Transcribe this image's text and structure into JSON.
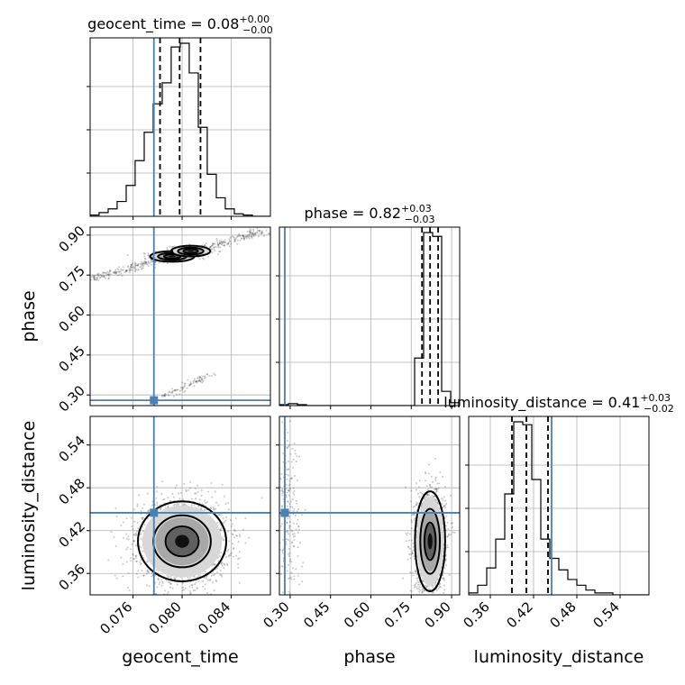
{
  "colors": {
    "truth": "#4682b4",
    "grid": "#b0b0b0",
    "hist": "#000000"
  },
  "chart_data": {
    "type": "corner",
    "parameters": [
      "geocent_time",
      "phase",
      "luminosity_distance"
    ],
    "truths": {
      "geocent_time": 0.0777,
      "phase": 0.28,
      "luminosity_distance": 0.445
    },
    "titles": [
      {
        "param": "geocent_time",
        "text": "geocent_time = 0.08",
        "sup": "+0.00",
        "sub": "−0.00"
      },
      {
        "param": "phase",
        "text": "phase = 0.82",
        "sup": "+0.03",
        "sub": "−0.03"
      },
      {
        "param": "luminosity_distance",
        "text": "luminosity_distance = 0.41",
        "sup": "+0.03",
        "sub": "−0.02"
      }
    ],
    "axes": {
      "geocent_time": {
        "label": "geocent_time",
        "range": [
          0.0725,
          0.0872
        ],
        "ticks": [
          0.076,
          0.08,
          0.084
        ],
        "tick_labels": [
          "0.076",
          "0.080",
          "0.084"
        ]
      },
      "phase": {
        "label": "phase",
        "range": [
          0.26,
          0.93
        ],
        "ticks": [
          0.3,
          0.45,
          0.6,
          0.75,
          0.9
        ],
        "tick_labels": [
          "0.30",
          "0.45",
          "0.60",
          "0.75",
          "0.90"
        ]
      },
      "luminosity_distance": {
        "label": "luminosity_distance",
        "range": [
          0.33,
          0.58
        ],
        "ticks": [
          0.36,
          0.42,
          0.48,
          0.54
        ],
        "tick_labels": [
          "0.36",
          "0.42",
          "0.48",
          "0.54"
        ]
      }
    },
    "histograms": [
      {
        "param": "geocent_time",
        "bin_edges": [
          0.0725,
          0.07323,
          0.07397,
          0.0747,
          0.07544,
          0.07617,
          0.07691,
          0.07764,
          0.07838,
          0.07911,
          0.07985,
          0.08058,
          0.08132,
          0.08205,
          0.08279,
          0.08352,
          0.08426,
          0.08499,
          0.08573,
          0.08646,
          0.0872
        ],
        "counts": [
          1,
          3,
          6,
          12,
          25,
          45,
          68,
          91,
          108,
          137,
          140,
          116,
          72,
          34,
          15,
          6,
          2,
          1,
          0,
          0
        ],
        "quantiles": [
          0.0782,
          0.0798,
          0.0815
        ]
      },
      {
        "param": "phase",
        "bin_edges": [
          0.26,
          0.2935,
          0.327,
          0.3605,
          0.394,
          0.4275,
          0.461,
          0.4945,
          0.528,
          0.5615,
          0.595,
          0.6285,
          0.662,
          0.6955,
          0.729,
          0.7625,
          0.796,
          0.8295,
          0.863,
          0.8965,
          0.93
        ],
        "counts": [
          1,
          2,
          1,
          0,
          0,
          0,
          0,
          0,
          0,
          0,
          0,
          0,
          0,
          0,
          0,
          50,
          182,
          178,
          15,
          3
        ],
        "quantiles": [
          0.79,
          0.82,
          0.85
        ]
      },
      {
        "param": "luminosity_distance",
        "bin_edges": [
          0.33,
          0.3425,
          0.355,
          0.3675,
          0.38,
          0.3925,
          0.405,
          0.4175,
          0.43,
          0.4425,
          0.455,
          0.4675,
          0.48,
          0.4925,
          0.505,
          0.5175,
          0.53,
          0.5425,
          0.555,
          0.5675,
          0.58
        ],
        "counts": [
          2,
          10,
          28,
          58,
          105,
          180,
          177,
          120,
          58,
          38,
          26,
          16,
          10,
          5,
          2,
          2,
          0,
          0,
          0,
          0
        ],
        "quantiles": [
          0.39,
          0.41,
          0.44
        ]
      }
    ],
    "joint": [
      {
        "x": "geocent_time",
        "y": "phase",
        "modes": [
          {
            "x": 0.0792,
            "y": 0.82,
            "sx": 0.0009,
            "sy": 0.01,
            "w": 1
          },
          {
            "x": 0.0807,
            "y": 0.84,
            "sx": 0.0008,
            "sy": 0.01,
            "w": 1
          }
        ],
        "ridges": [
          {
            "x0": 0.0725,
            "y0": 0.735,
            "x1": 0.0868,
            "y1": 0.915,
            "width": 0.008,
            "n": 450
          },
          {
            "x0": 0.0782,
            "y0": 0.29,
            "x1": 0.0822,
            "y1": 0.375,
            "width": 0.004,
            "n": 90
          }
        ],
        "n_points": 700
      },
      {
        "x": "geocent_time",
        "y": "luminosity_distance",
        "modes": [
          {
            "x": 0.08,
            "y": 0.405,
            "sx": 0.0018,
            "sy": 0.028,
            "w": 1
          }
        ],
        "ridges": [],
        "n_points": 2200
      },
      {
        "x": "phase",
        "y": "luminosity_distance",
        "modes": [
          {
            "x": 0.82,
            "y": 0.405,
            "sx": 0.028,
            "sy": 0.035,
            "w": 1
          }
        ],
        "ridges": [],
        "n_points": 1700,
        "cluster": {
          "x": 0.29,
          "y": 0.45,
          "sx": 0.025,
          "sy": 0.06,
          "n": 220
        }
      }
    ]
  }
}
